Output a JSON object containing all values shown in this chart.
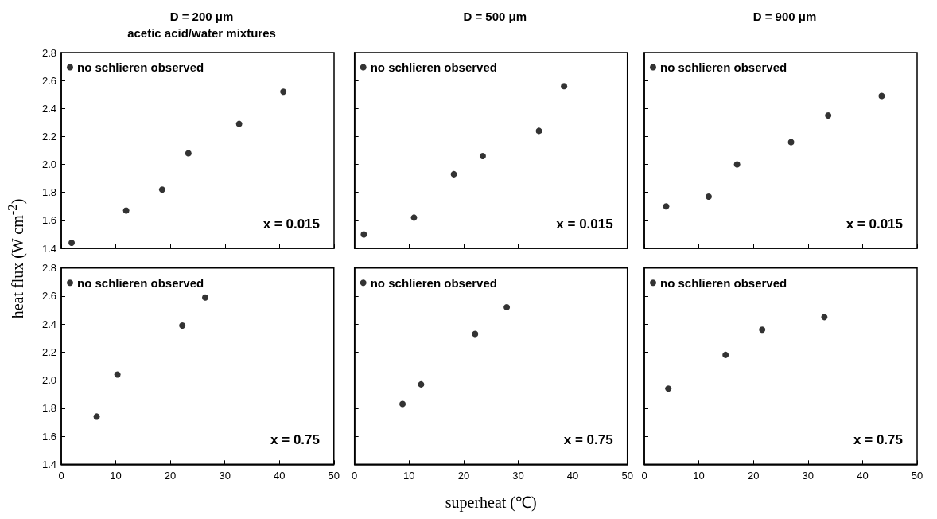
{
  "chart_data": [
    {
      "type": "scatter",
      "title": "D = 200 μm",
      "subtitle": "acetic acid/water mixtures",
      "ylabel": "heat flux (W cm$^{-2}$)",
      "x": [
        1.9,
        11.9,
        18.5,
        23.3,
        32.6,
        40.7
      ],
      "series": [
        {
          "name": "no schlieren observed",
          "color": "#000000",
          "values": [
            1.44,
            1.67,
            1.82,
            2.08,
            2.29,
            2.52
          ]
        }
      ],
      "xlim": [
        0,
        50
      ],
      "xticks": [
        0,
        10,
        20,
        30,
        40,
        50
      ],
      "ylim": [
        1.4,
        2.8
      ],
      "yticks": [
        1.4,
        1.6,
        1.8,
        {
          "value": 2,
          "label": "2.0"
        },
        2.2,
        2.4,
        2.6,
        2.8
      ],
      "tick_labels": "y",
      "legend": "top left",
      "marker": "circle",
      "annotations": [
        "x = 0.015"
      ]
    },
    {
      "type": "scatter",
      "title": "D = 500 μm",
      "x": [
        1.7,
        10.9,
        18.2,
        23.5,
        33.8,
        38.4
      ],
      "series": [
        {
          "name": "no schlieren observed",
          "color": "#000000",
          "values": [
            1.5,
            1.62,
            1.93,
            2.06,
            2.24,
            2.56
          ]
        }
      ],
      "xlim": [
        0,
        50
      ],
      "xticks": [
        0,
        10,
        20,
        30,
        40,
        50
      ],
      "ylim": [
        1.4,
        2.8
      ],
      "yticks": [
        1.4,
        1.6,
        1.8,
        2,
        2.2,
        2.4,
        2.6,
        2.8
      ],
      "tick_labels": false,
      "legend": "top left",
      "marker": "circle",
      "annotations": [
        "x = 0.015"
      ]
    },
    {
      "type": "scatter",
      "title": "D = 900 μm",
      "x": [
        4.0,
        11.8,
        17.0,
        26.9,
        33.7,
        43.5
      ],
      "series": [
        {
          "name": "no schlieren observed",
          "color": "#000000",
          "values": [
            1.7,
            1.77,
            2.0,
            2.16,
            2.35,
            2.49
          ]
        }
      ],
      "xlim": [
        0,
        50
      ],
      "xticks": [
        0,
        10,
        20,
        30,
        40,
        50
      ],
      "ylim": [
        1.4,
        2.8
      ],
      "yticks": [
        1.4,
        1.6,
        1.8,
        2,
        2.2,
        2.4,
        2.6,
        2.8
      ],
      "tick_labels": false,
      "legend": "top left",
      "marker": "circle",
      "annotations": [
        "x = 0.015"
      ]
    },
    {
      "type": "scatter",
      "x": [
        6.5,
        10.3,
        22.2,
        26.4
      ],
      "series": [
        {
          "name": "no schlieren observed",
          "color": "#000000",
          "values": [
            1.74,
            2.04,
            2.39,
            2.59
          ]
        }
      ],
      "xlim": [
        0,
        50
      ],
      "xticks": [
        0,
        10,
        20,
        30,
        40,
        50
      ],
      "ylim": [
        1.4,
        2.8
      ],
      "yticks": [
        1.4,
        1.6,
        1.8,
        {
          "value": 2,
          "label": "2.0"
        },
        2.2,
        2.4,
        2.6,
        2.8
      ],
      "legend": "top left",
      "marker": "circle",
      "annotations": [
        "x = 0.75"
      ]
    },
    {
      "type": "scatter",
      "xlabel": "superheat (℃)",
      "x": [
        8.8,
        12.2,
        22.1,
        27.9
      ],
      "series": [
        {
          "name": "no schlieren observed",
          "color": "#000000",
          "values": [
            1.83,
            1.97,
            2.33,
            2.52
          ]
        }
      ],
      "xlim": [
        0,
        50
      ],
      "xticks": [
        0,
        10,
        20,
        30,
        40,
        50
      ],
      "ylim": [
        1.4,
        2.8
      ],
      "yticks": [
        1.4,
        1.6,
        1.8,
        2,
        2.2,
        2.4,
        2.6,
        2.8
      ],
      "tick_labels": "x",
      "legend": "top left",
      "marker": "circle",
      "annotations": [
        "x = 0.75"
      ]
    },
    {
      "type": "scatter",
      "x": [
        4.4,
        14.9,
        21.6,
        33.0
      ],
      "series": [
        {
          "name": "no schlieren observed",
          "color": "#000000",
          "values": [
            1.94,
            2.18,
            2.36,
            2.45
          ]
        }
      ],
      "xlim": [
        0,
        50
      ],
      "xticks": [
        0,
        10,
        20,
        30,
        40,
        50
      ],
      "ylim": [
        1.4,
        2.8
      ],
      "yticks": [
        1.4,
        1.6,
        1.8,
        2,
        2.2,
        2.4,
        2.6,
        2.8
      ],
      "tick_labels": "x",
      "legend": "top left",
      "marker": "circle",
      "annotations": [
        "x = 0.75"
      ]
    }
  ]
}
